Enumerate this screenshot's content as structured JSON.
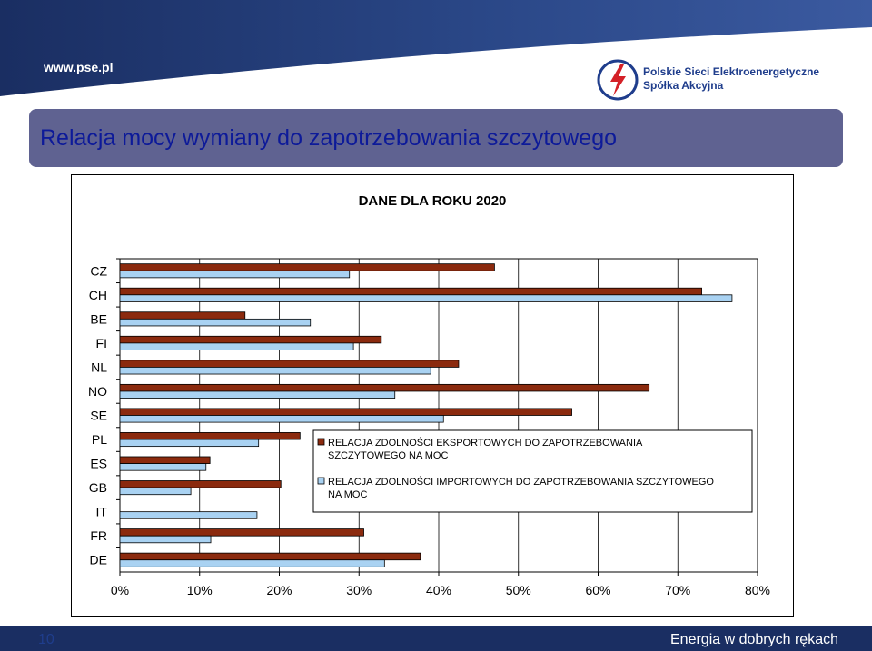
{
  "header": {
    "url": "www.pse.pl",
    "company_line1": "Polskie Sieci Elektroenergetyczne",
    "company_line2": "Spółka Akcyjna",
    "logo_icon": "pse-logo-icon"
  },
  "slide": {
    "title": "Relacja mocy wymiany do zapotrzebowania szczytowego",
    "page_number": "10",
    "slogan": "Energia w dobrych rękach"
  },
  "colors": {
    "band_dark": "#1a2e62",
    "band_light": "#3b5aa0",
    "title_bg": "#5f6291",
    "title_text": "#0d1a99",
    "export_series": "#8b2a0e",
    "import_series": "#a9d2f2"
  },
  "chart_data": {
    "type": "bar",
    "orientation": "horizontal",
    "title": "DANE DLA ROKU 2020",
    "categories": [
      "CZ",
      "CH",
      "BE",
      "FI",
      "NL",
      "NO",
      "SE",
      "PL",
      "ES",
      "GB",
      "IT",
      "FR",
      "DE"
    ],
    "series": [
      {
        "name": "RELACJA ZDOLNOŚCI EKSPORTOWYCH DO ZAPOTRZEBOWANIA SZCZYTOWEGO NA MOC",
        "color": "#8b2a0e",
        "values": [
          47,
          73,
          15.7,
          32.8,
          42.5,
          66.4,
          56.7,
          22.6,
          11.3,
          20.2,
          0,
          30.6,
          37.7
        ]
      },
      {
        "name": "RELACJA ZDOLNOŚCI IMPORTOWYCH DO ZAPOTRZEBOWANIA SZCZYTOWEGO NA MOC",
        "color": "#a9d2f2",
        "values": [
          28.8,
          76.8,
          23.9,
          29.3,
          39.0,
          34.5,
          40.6,
          17.4,
          10.8,
          8.9,
          17.2,
          11.4,
          33.2
        ]
      }
    ],
    "x_ticks": [
      "0%",
      "10%",
      "20%",
      "30%",
      "40%",
      "50%",
      "60%",
      "70%",
      "80%"
    ],
    "xlim": [
      0,
      80
    ],
    "grid": "vertical",
    "legend": "center-right"
  }
}
